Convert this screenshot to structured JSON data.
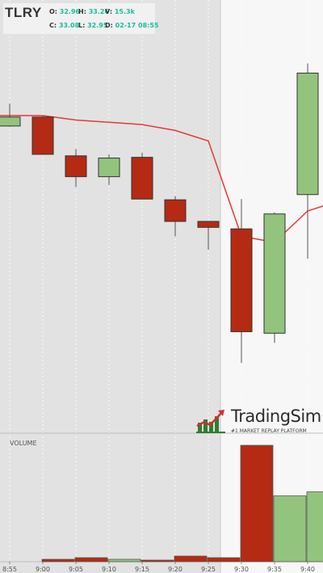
{
  "header": {
    "ticker": "TLRY",
    "open_label": "O:",
    "open": "32.96",
    "high_label": "H:",
    "high": "33.26",
    "volume_label": "V:",
    "volume": "15.3k",
    "close_label": "C:",
    "close": "33.08",
    "low_label": "L:",
    "low": "32.95",
    "date_label": "D:",
    "date": "02-17 08:55"
  },
  "branding": {
    "name": "TradingSim",
    "tagline": "#1 MARKET REPLAY PLATFORM"
  },
  "volume_panel": {
    "label": "VOLUME"
  },
  "colors": {
    "up": "#93c47d",
    "down": "#b52a12",
    "ma_line": "#e53935",
    "premarket_bg": "#e2e2e2",
    "market_bg": "#f7f7f7"
  },
  "chart_data": {
    "type": "candlestick",
    "x_labels": [
      "8:55",
      "9:00",
      "9:05",
      "9:10",
      "9:15",
      "9:20",
      "9:25",
      "9:30",
      "9:35",
      "9:40"
    ],
    "candles": [
      {
        "time": "8:55",
        "open": 32.96,
        "high": 33.26,
        "low": 32.95,
        "close": 33.08
      },
      {
        "time": "9:00",
        "open": 33.08,
        "high": 33.1,
        "low": 32.58,
        "close": 32.58
      },
      {
        "time": "9:05",
        "open": 32.56,
        "high": 32.65,
        "low": 32.14,
        "close": 32.28
      },
      {
        "time": "9:10",
        "open": 32.28,
        "high": 32.58,
        "low": 32.17,
        "close": 32.53
      },
      {
        "time": "9:15",
        "open": 32.54,
        "high": 32.6,
        "low": 31.98,
        "close": 31.98
      },
      {
        "time": "9:20",
        "open": 31.97,
        "high": 32.02,
        "low": 31.48,
        "close": 31.68
      },
      {
        "time": "9:25",
        "open": 31.68,
        "high": 31.68,
        "low": 31.3,
        "close": 31.6
      },
      {
        "time": "9:30",
        "open": 31.58,
        "high": 31.98,
        "low": 29.78,
        "close": 30.2
      },
      {
        "time": "9:35",
        "open": 30.18,
        "high": 31.8,
        "low": 30.05,
        "close": 31.78
      },
      {
        "time": "9:40",
        "open": 32.04,
        "high": 33.8,
        "low": 31.18,
        "close": 33.67
      }
    ],
    "ma_line": [
      {
        "time": "8:55",
        "value": 33.1
      },
      {
        "time": "9:00",
        "value": 33.1
      },
      {
        "time": "9:05",
        "value": 33.04
      },
      {
        "time": "9:10",
        "value": 33.01
      },
      {
        "time": "9:15",
        "value": 32.98
      },
      {
        "time": "9:20",
        "value": 32.9
      },
      {
        "time": "9:25",
        "value": 32.76
      },
      {
        "time": "9:30",
        "value": 31.48
      },
      {
        "time": "9:35",
        "value": 31.4
      },
      {
        "time": "9:40",
        "value": 31.82
      }
    ],
    "volume": [
      0,
      3,
      5,
      3,
      2,
      7,
      5,
      145,
      82,
      87
    ],
    "volume_ylim": [
      0,
      148
    ],
    "ylim": [
      29.5,
      34.0
    ],
    "premarket_until": "9:25",
    "grid": true
  }
}
